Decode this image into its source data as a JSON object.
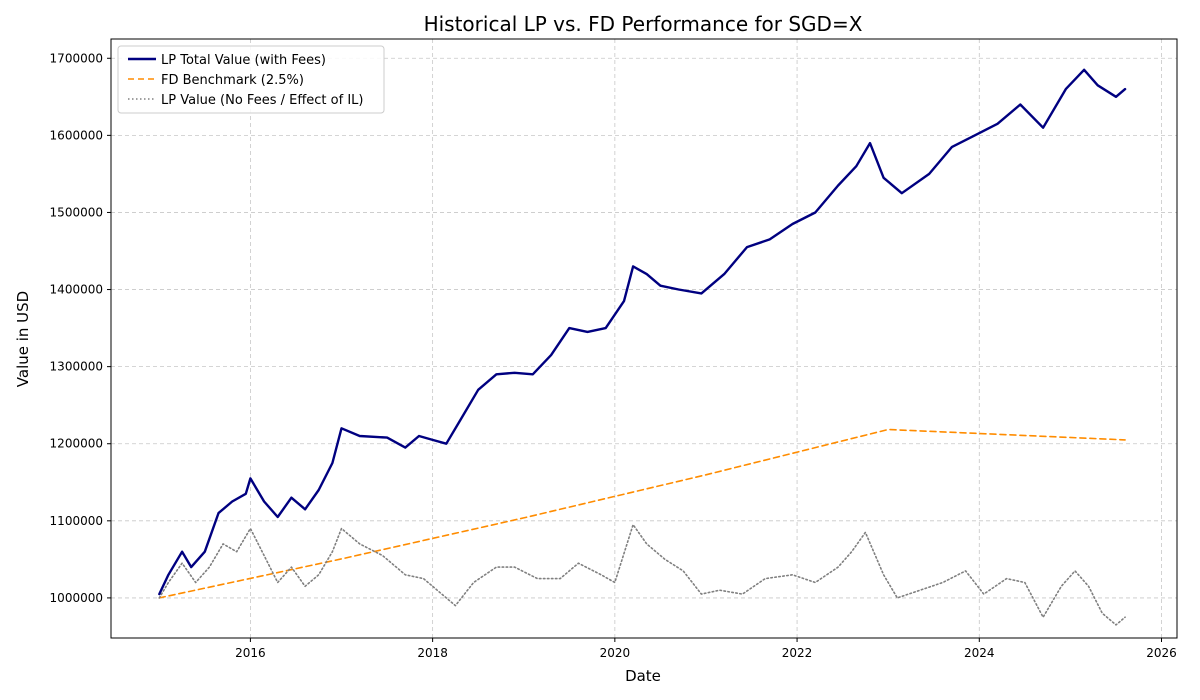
{
  "chart_data": {
    "type": "line",
    "title": "Historical LP vs. FD Performance for SGD=X",
    "xlabel": "Date",
    "ylabel": "Value in USD",
    "x_unit": "year",
    "xlim": [
      2014.47,
      2026.17
    ],
    "ylim": [
      948000,
      1725000
    ],
    "x_ticks": [
      2016,
      2018,
      2020,
      2022,
      2024,
      2026
    ],
    "x_tick_labels": [
      "2016",
      "2018",
      "2020",
      "2022",
      "2024",
      "2026"
    ],
    "y_ticks": [
      1000000,
      1100000,
      1200000,
      1300000,
      1400000,
      1500000,
      1600000,
      1700000
    ],
    "y_tick_labels": [
      "1000000",
      "1100000",
      "1200000",
      "1300000",
      "1400000",
      "1500000",
      "1600000",
      "1700000"
    ],
    "grid": true,
    "legend_position": "top-left",
    "series": [
      {
        "name": "LP Total Value (with Fees)",
        "color": "#000080",
        "style": "solid",
        "x": [
          2015.0,
          2015.1,
          2015.25,
          2015.35,
          2015.5,
          2015.65,
          2015.8,
          2015.95,
          2016.0,
          2016.15,
          2016.3,
          2016.45,
          2016.6,
          2016.75,
          2016.9,
          2017.0,
          2017.2,
          2017.5,
          2017.7,
          2017.85,
          2018.0,
          2018.15,
          2018.3,
          2018.5,
          2018.7,
          2018.9,
          2019.1,
          2019.3,
          2019.5,
          2019.7,
          2019.9,
          2020.1,
          2020.2,
          2020.35,
          2020.5,
          2020.7,
          2020.95,
          2021.2,
          2021.45,
          2021.7,
          2021.95,
          2022.2,
          2022.45,
          2022.65,
          2022.8,
          2022.95,
          2023.15,
          2023.45,
          2023.7,
          2023.95,
          2024.2,
          2024.45,
          2024.7,
          2024.95,
          2025.15,
          2025.3,
          2025.5,
          2025.6
        ],
        "y": [
          1005000,
          1030000,
          1060000,
          1040000,
          1060000,
          1110000,
          1125000,
          1135000,
          1155000,
          1125000,
          1105000,
          1130000,
          1115000,
          1140000,
          1175000,
          1220000,
          1210000,
          1208000,
          1195000,
          1210000,
          1205000,
          1200000,
          1230000,
          1270000,
          1290000,
          1292000,
          1290000,
          1315000,
          1350000,
          1345000,
          1350000,
          1385000,
          1430000,
          1420000,
          1405000,
          1400000,
          1395000,
          1420000,
          1455000,
          1465000,
          1485000,
          1500000,
          1535000,
          1560000,
          1590000,
          1545000,
          1525000,
          1550000,
          1585000,
          1600000,
          1615000,
          1640000,
          1610000,
          1660000,
          1685000,
          1665000,
          1650000,
          1660000
        ]
      },
      {
        "name": "FD Benchmark (2.5%)",
        "color": "#ff8c00",
        "style": "dashed",
        "x": [
          2015.0,
          2017.0,
          2019.0,
          2021.0,
          2023.0,
          2025.6
        ],
        "y": [
          1000000,
          1050600,
          1103800,
          1159700,
          1218400,
          1205000
        ]
      },
      {
        "name": "LP Value (No Fees / Effect of IL)",
        "color": "#808080",
        "style": "dotted",
        "x": [
          2015.0,
          2015.1,
          2015.25,
          2015.4,
          2015.55,
          2015.7,
          2015.85,
          2016.0,
          2016.15,
          2016.3,
          2016.45,
          2016.6,
          2016.75,
          2016.9,
          2017.0,
          2017.2,
          2017.45,
          2017.7,
          2017.9,
          2018.05,
          2018.25,
          2018.45,
          2018.7,
          2018.9,
          2019.15,
          2019.4,
          2019.6,
          2019.85,
          2020.0,
          2020.2,
          2020.35,
          2020.55,
          2020.75,
          2020.95,
          2021.15,
          2021.4,
          2021.65,
          2021.95,
          2022.2,
          2022.45,
          2022.6,
          2022.75,
          2022.95,
          2023.1,
          2023.35,
          2023.6,
          2023.85,
          2024.05,
          2024.3,
          2024.5,
          2024.7,
          2024.9,
          2025.05,
          2025.2,
          2025.35,
          2025.5,
          2025.6
        ],
        "y": [
          1000000,
          1020000,
          1045000,
          1020000,
          1040000,
          1070000,
          1060000,
          1090000,
          1055000,
          1020000,
          1040000,
          1015000,
          1030000,
          1060000,
          1090000,
          1070000,
          1055000,
          1030000,
          1025000,
          1010000,
          990000,
          1020000,
          1040000,
          1040000,
          1025000,
          1025000,
          1045000,
          1030000,
          1020000,
          1095000,
          1070000,
          1050000,
          1035000,
          1005000,
          1010000,
          1005000,
          1025000,
          1030000,
          1020000,
          1040000,
          1060000,
          1085000,
          1030000,
          1000000,
          1010000,
          1020000,
          1035000,
          1005000,
          1025000,
          1020000,
          975000,
          1015000,
          1035000,
          1015000,
          980000,
          965000,
          975000
        ]
      }
    ]
  }
}
